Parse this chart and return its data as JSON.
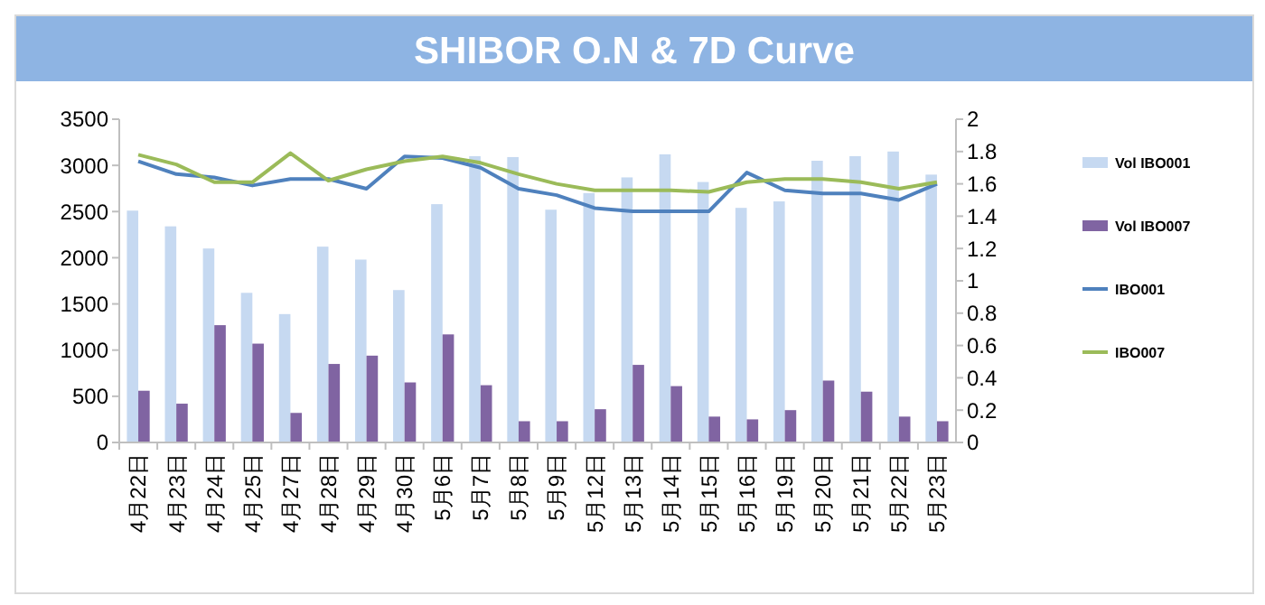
{
  "chart_data": {
    "type": "bar",
    "title": "SHIBOR O.N & 7D Curve",
    "categories": [
      "4月22日",
      "4月23日",
      "4月24日",
      "4月25日",
      "4月27日",
      "4月28日",
      "4月29日",
      "4月30日",
      "5月6日",
      "5月7日",
      "5月8日",
      "5月9日",
      "5月12日",
      "5月13日",
      "5月14日",
      "5月15日",
      "5月16日",
      "5月19日",
      "5月20日",
      "5月21日",
      "5月22日",
      "5月23日"
    ],
    "series": [
      {
        "name": "Vol IBO001",
        "color": "#c6d9f1",
        "values": [
          2510,
          2340,
          2100,
          1620,
          1390,
          2120,
          1980,
          1650,
          2580,
          3100,
          3090,
          2520,
          2700,
          2870,
          3120,
          2820,
          2540,
          2610,
          3050,
          3100,
          3150,
          2900
        ]
      },
      {
        "name": "Vol IBO007",
        "color": "#8064a2",
        "values": [
          560,
          420,
          1270,
          1070,
          320,
          850,
          940,
          650,
          1170,
          620,
          230,
          230,
          360,
          840,
          610,
          280,
          250,
          350,
          670,
          550,
          280,
          230
        ]
      },
      {
        "name": "IBO001",
        "type": "line",
        "axis": "y2",
        "color": "#4f81bd",
        "values": [
          1.74,
          1.66,
          1.64,
          1.59,
          1.63,
          1.63,
          1.57,
          1.77,
          1.76,
          1.7,
          1.57,
          1.53,
          1.45,
          1.43,
          1.43,
          1.43,
          1.67,
          1.56,
          1.54,
          1.54,
          1.5,
          1.6
        ]
      },
      {
        "name": "IBO007",
        "type": "line",
        "axis": "y2",
        "color": "#9bbb59",
        "values": [
          1.78,
          1.72,
          1.61,
          1.61,
          1.79,
          1.62,
          1.69,
          1.74,
          1.77,
          1.73,
          1.66,
          1.6,
          1.56,
          1.56,
          1.56,
          1.55,
          1.61,
          1.63,
          1.63,
          1.61,
          1.57,
          1.61
        ]
      }
    ],
    "ylim": [
      0,
      3500
    ],
    "yticks": [
      0,
      500,
      1000,
      1500,
      2000,
      2500,
      3000,
      3500
    ],
    "y2lim": [
      0,
      2
    ],
    "y2ticks": [
      0,
      {
        "value": 0.2,
        "label": "0.2"
      },
      {
        "value": 0.4,
        "label": "0.4"
      },
      {
        "value": 0.6,
        "label": "0.6"
      },
      {
        "value": 0.8,
        "label": "0.8"
      },
      1,
      {
        "value": 1.2,
        "label": "1.2"
      },
      {
        "value": 1.4,
        "label": "1.4"
      },
      {
        "value": 1.6,
        "label": "1.6"
      },
      {
        "value": 1.8,
        "label": "1.8"
      },
      2
    ],
    "legend": "right",
    "grid": false
  }
}
